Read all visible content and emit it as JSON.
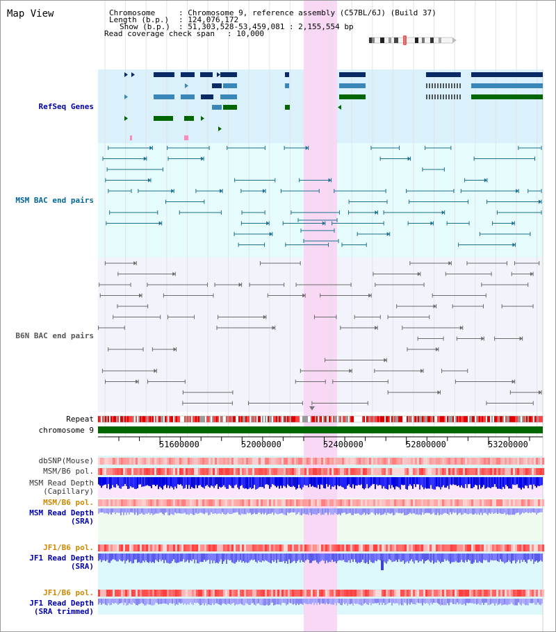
{
  "page": {
    "title": "Map View"
  },
  "header": {
    "chromosome_key": "Chromosome",
    "chromosome_val": ": Chromosome 9, reference assembly (C57BL/6J) (Build 37)",
    "length_key": "Length (b.p.)",
    "length_val": ": 124,076,172",
    "show_key": "Show (b.p.)",
    "show_val": ": 51,303,528-53,459,081 : 2,155,554 bp",
    "span_key": "Read coverage check span",
    "span_val": ": 10,000"
  },
  "tracks": {
    "refseq": "RefSeq Genes",
    "msm_bac": "MSM BAC end pairs",
    "b6n_bac": "B6N BAC end pairs",
    "repeat": "Repeat",
    "chromosome": "chromosome 9",
    "dbsnp": "dbSNP(Mouse)",
    "msm_b6_pol_1": "MSM/B6 pol.",
    "msm_depth_cap_1": "MSM Read Depth",
    "msm_depth_cap_2": "(Capillary)",
    "msm_b6_pol_2": "MSM/B6 pol.",
    "msm_depth_sra_1": "MSM Read Depth",
    "msm_depth_sra_2": "(SRA)",
    "jf1_b6_pol_1": "JF1/B6 pol.",
    "jf1_depth_sra_1": "JF1 Read Depth",
    "jf1_depth_sra_2": "(SRA)",
    "jf1_b6_pol_2": "JF1/B6 pol.",
    "jf1_depth_trim_1": "JF1 Read Depth",
    "jf1_depth_trim_2": "(SRA trimmed)"
  },
  "axis": {
    "ticks": [
      "51600000",
      "52000000",
      "52400000",
      "52800000",
      "53200000"
    ]
  },
  "colors": {
    "refseq_label": "#0000aa",
    "msm_label": "#006699",
    "b6n_label": "#555555",
    "jf1_pol_label": "#cc8800",
    "highlight": "#f8d8f4",
    "chromosome_bar": "#006600"
  }
}
